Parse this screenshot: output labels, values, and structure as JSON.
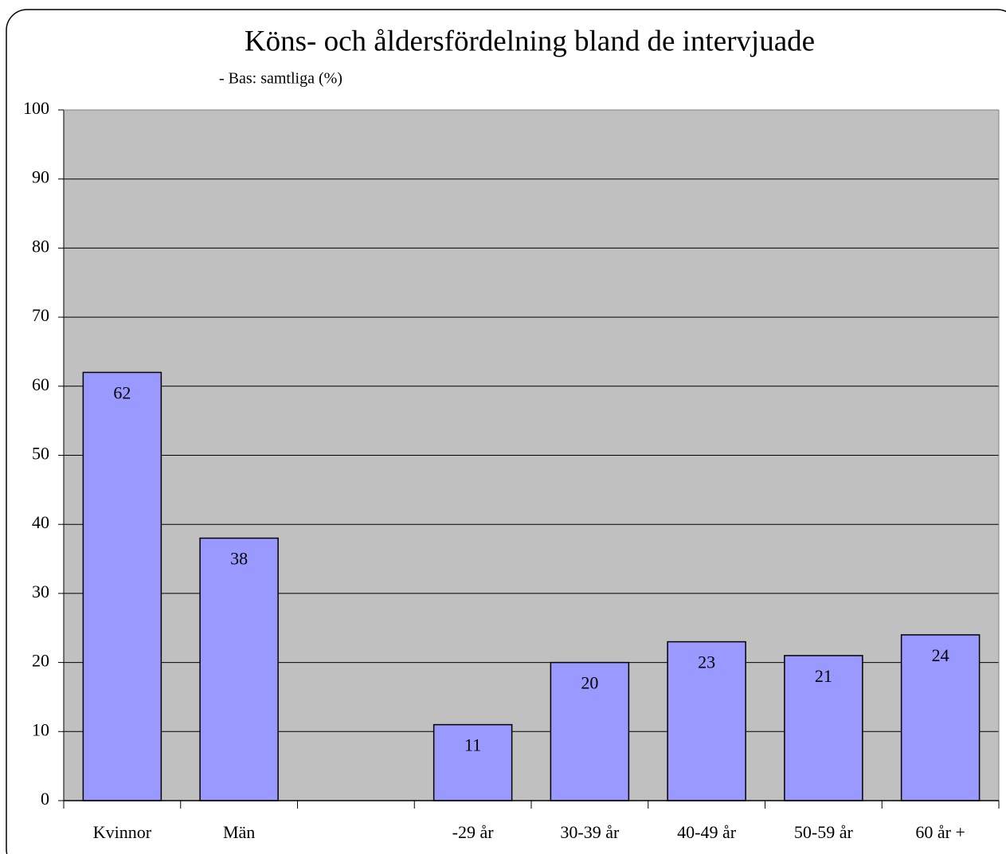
{
  "chart_data": {
    "type": "bar",
    "title": "Köns- och åldersfördelning bland de intervjuade",
    "subtitle": "- Bas: samtliga (%)",
    "categories": [
      "Kvinnor",
      "Män",
      null,
      "-29 år",
      "30-39 år",
      "40-49 år",
      "50-59 år",
      "60 år +"
    ],
    "values": [
      62,
      38,
      null,
      11,
      20,
      23,
      21,
      24
    ],
    "color": "#9999ff",
    "ylim": [
      0,
      100
    ],
    "yticks": [
      0,
      10,
      20,
      30,
      40,
      50,
      60,
      70,
      80,
      90,
      100
    ],
    "grid": true
  }
}
